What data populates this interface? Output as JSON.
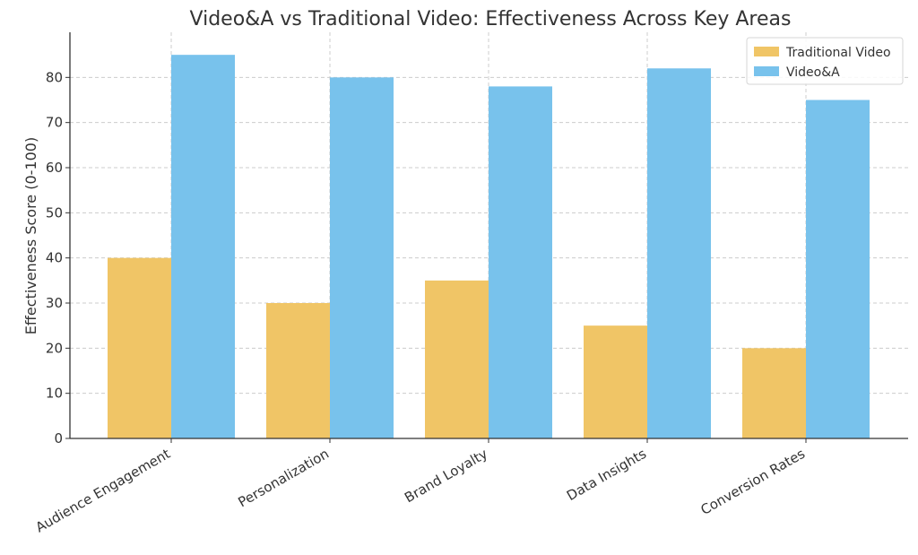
{
  "chart_data": {
    "type": "bar",
    "title": "Video&A vs Traditional Video: Effectiveness Across Key Areas",
    "xlabel": "",
    "ylabel": "Effectiveness Score (0-100)",
    "categories": [
      "Audience Engagement",
      "Personalization",
      "Brand Loyalty",
      "Data Insights",
      "Conversion Rates"
    ],
    "series": [
      {
        "name": "Traditional Video",
        "color": "#f0c566",
        "values": [
          40,
          30,
          35,
          25,
          20
        ]
      },
      {
        "name": "Video&A",
        "color": "#78c2ec",
        "values": [
          85,
          80,
          78,
          82,
          75
        ]
      }
    ],
    "ylim": [
      0,
      90
    ],
    "yticks": [
      0,
      10,
      20,
      30,
      40,
      50,
      60,
      70,
      80
    ],
    "grid": true,
    "legend_position": "top-right"
  }
}
